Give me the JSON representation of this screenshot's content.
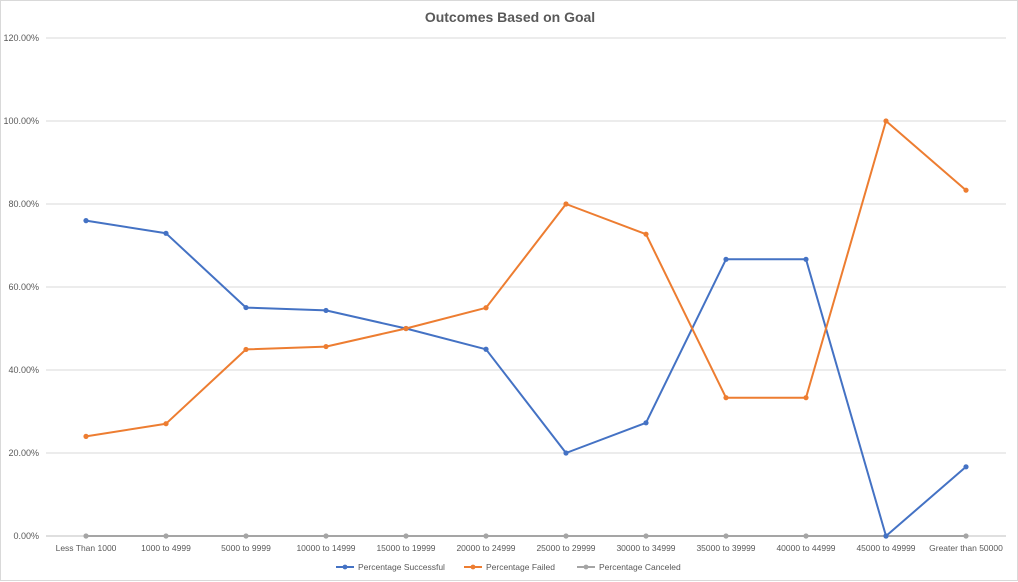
{
  "chart_data": {
    "type": "line",
    "title": "Outcomes Based on Goal",
    "xlabel": "",
    "ylabel": "",
    "categories": [
      "Less Than 1000",
      "1000 to 4999",
      "5000 to 9999",
      "10000 to 14999",
      "15000 to 19999",
      "20000 to 24999",
      "25000 to 29999",
      "30000 to 34999",
      "35000 to 39999",
      "40000 to 44999",
      "45000 to 49999",
      "Greater than 50000"
    ],
    "y_ticks": [
      "0.00%",
      "20.00%",
      "40.00%",
      "60.00%",
      "80.00%",
      "100.00%",
      "120.00%"
    ],
    "ylim": [
      0,
      1.2
    ],
    "grid": "horizontal",
    "legend_position": "bottom",
    "series": [
      {
        "name": "Percentage Successful",
        "color": "#4472c4",
        "values": [
          0.76,
          0.7294,
          0.5504,
          0.5435,
          0.5,
          0.45,
          0.2,
          0.2727,
          0.6667,
          0.6667,
          0.0,
          0.1667
        ]
      },
      {
        "name": "Percentage Failed",
        "color": "#ed7d31",
        "values": [
          0.24,
          0.2706,
          0.4496,
          0.4565,
          0.5,
          0.55,
          0.8,
          0.7273,
          0.3333,
          0.3333,
          1.0,
          0.8333
        ]
      },
      {
        "name": "Percentage Canceled",
        "color": "#a5a5a5",
        "values": [
          0,
          0,
          0,
          0,
          0,
          0,
          0,
          0,
          0,
          0,
          0,
          0
        ]
      }
    ]
  }
}
